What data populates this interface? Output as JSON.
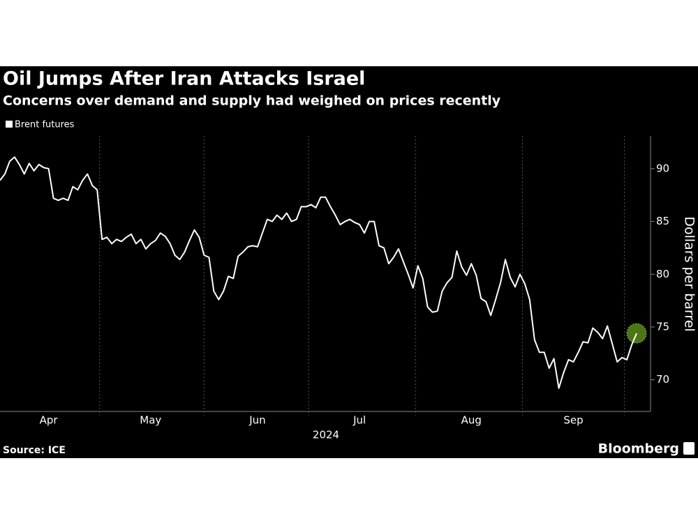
{
  "chart_data": {
    "type": "line",
    "title": "Oil Jumps After Iran Attacks Israel",
    "subtitle": "Concerns over demand and supply had weighed on prices recently",
    "x_label": "2024",
    "y_label": "Dollars per barrel",
    "source": "Source: ICE",
    "brand": "Bloomberg",
    "categories": [
      null,
      null,
      null,
      null,
      null,
      null,
      null,
      null,
      null,
      null,
      "Apr",
      null,
      null,
      null,
      null,
      null,
      null,
      null,
      null,
      null,
      null,
      null,
      null,
      null,
      null,
      null,
      null,
      null,
      null,
      null,
      null,
      "May",
      null,
      null,
      null,
      null,
      null,
      null,
      null,
      null,
      null,
      null,
      null,
      null,
      null,
      null,
      null,
      null,
      null,
      null,
      null,
      null,
      null,
      "Jun",
      null,
      null,
      null,
      null,
      null,
      null,
      null,
      null,
      null,
      null,
      null,
      null,
      null,
      null,
      null,
      null,
      null,
      null,
      null,
      null,
      "Jul",
      null,
      null,
      null,
      null,
      null,
      null,
      null,
      null,
      null,
      null,
      null,
      null,
      null,
      null,
      null,
      null,
      null,
      null,
      null,
      null,
      null,
      null,
      "Aug",
      null,
      null,
      null,
      null,
      null,
      null,
      null,
      null,
      null,
      null,
      null,
      null,
      null,
      null,
      null,
      null,
      null,
      null,
      null,
      null,
      "Sep",
      null,
      null,
      null,
      null,
      null,
      null,
      null,
      null,
      null,
      null,
      null,
      null,
      null
    ],
    "series": [
      {
        "name": "Brent futures",
        "color": "#ffffff",
        "values": [
          88.9,
          89.5,
          90.7,
          91.1,
          90.4,
          89.5,
          90.5,
          89.8,
          90.4,
          90.1,
          90.0,
          87.2,
          87.0,
          87.2,
          87.0,
          88.3,
          88.0,
          88.9,
          89.5,
          88.4,
          88.0,
          83.3,
          83.5,
          82.9,
          83.3,
          83.1,
          83.5,
          83.8,
          82.9,
          83.3,
          82.4,
          82.9,
          83.2,
          83.9,
          83.6,
          82.9,
          81.8,
          81.4,
          82.1,
          83.2,
          84.2,
          83.5,
          81.8,
          81.6,
          78.4,
          77.6,
          78.4,
          79.8,
          79.6,
          81.7,
          82.1,
          82.6,
          82.7,
          82.6,
          83.9,
          85.2,
          85.0,
          85.6,
          85.2,
          85.8,
          85.0,
          85.2,
          86.4,
          86.4,
          86.6,
          86.3,
          87.3,
          87.3,
          86.4,
          85.6,
          84.7,
          85.0,
          85.2,
          84.9,
          84.7,
          83.9,
          85.0,
          85.0,
          82.7,
          82.5,
          81.0,
          81.6,
          82.4,
          81.2,
          80.0,
          78.7,
          80.8,
          79.6,
          76.9,
          76.4,
          76.5,
          78.4,
          79.2,
          79.7,
          82.2,
          80.7,
          79.9,
          81.0,
          79.9,
          77.7,
          77.4,
          76.1,
          77.6,
          79.2,
          81.4,
          79.7,
          78.8,
          80.0,
          79.1,
          77.6,
          73.8,
          72.6,
          72.6,
          71.1,
          72.0,
          69.2,
          70.7,
          71.9,
          71.7,
          72.6,
          73.6,
          73.5,
          74.9,
          74.5,
          73.9,
          75.1,
          73.4,
          71.7,
          72.1,
          71.9,
          73.3,
          74.4
        ]
      }
    ],
    "ylim": [
      67,
      93.1
    ],
    "yticks": [
      70,
      75,
      80,
      85,
      90
    ],
    "grid": true
  }
}
